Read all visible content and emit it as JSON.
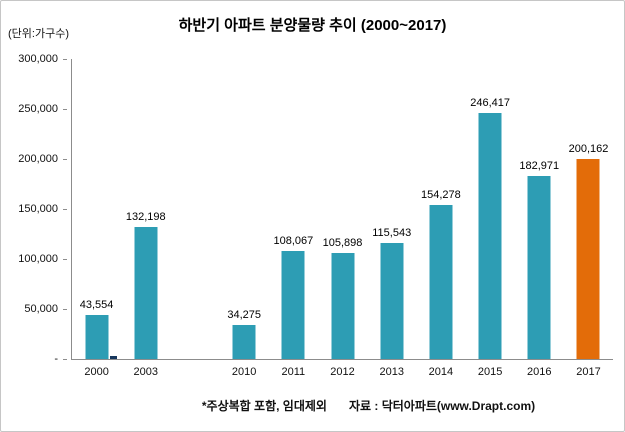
{
  "chart_data": {
    "type": "bar",
    "title": "하반기 아파트 분양물량 추이 (2000~2017)",
    "unit_label": "(단위:가구수)",
    "categories": [
      "2000",
      "2003",
      "",
      "2010",
      "2011",
      "2012",
      "2013",
      "2014",
      "2015",
      "2016",
      "2017"
    ],
    "values": [
      43554,
      132198,
      null,
      34275,
      108067,
      105898,
      115543,
      154278,
      246417,
      182971,
      200162
    ],
    "value_labels": [
      "43,554",
      "132,198",
      "",
      "34,275",
      "108,067",
      "105,898",
      "115,543",
      "154,278",
      "246,417",
      "182,971",
      "200,162"
    ],
    "highlight_category": "2017",
    "colors": {
      "bar": "#2D9DB4",
      "highlight": "#E36C09",
      "axis": "#8c8c8c"
    },
    "ylim": [
      0,
      300000
    ],
    "yticks": [
      "300,000",
      "250,000",
      "200,000",
      "150,000",
      "100,000",
      "50,000",
      "-"
    ],
    "grid": false,
    "legend": null,
    "small_unlabeled_bar": {
      "after_category": "2000",
      "color": "#17375D"
    }
  },
  "footnote": {
    "note": "*주상복합 포함, 임대제외",
    "source": "자료 : 닥터아파트(www.Drapt.com)"
  }
}
